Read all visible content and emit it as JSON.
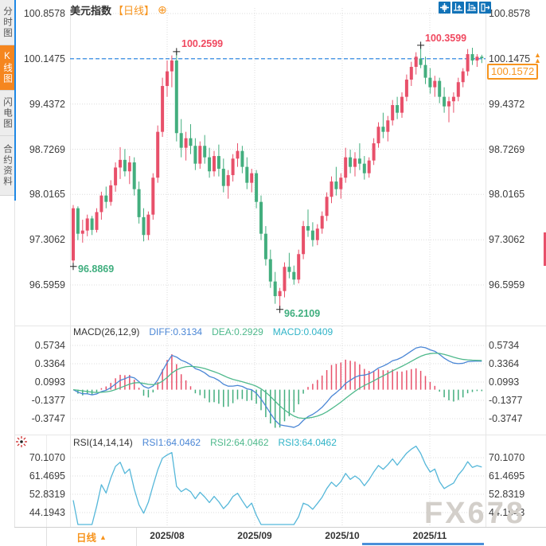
{
  "window": {
    "title_symbol": "美元指数",
    "title_period": "【日线】",
    "title_plus_icon": "⊕"
  },
  "toolbar": {
    "icons": [
      {
        "name": "crosshair"
      },
      {
        "name": "fit-y-axis"
      },
      {
        "name": "fit-x-axis"
      },
      {
        "name": "exit-chart"
      }
    ]
  },
  "sidebar": {
    "tabs": [
      {
        "label": "分时图",
        "active": false
      },
      {
        "label": "K线图",
        "active": true
      },
      {
        "label": "闪电图",
        "active": false
      },
      {
        "label": "合约资料",
        "active": false
      }
    ]
  },
  "price_axis": {
    "labels": [
      "100.8578",
      "100.1475",
      "99.4372",
      "98.7269",
      "98.0165",
      "97.3062",
      "96.5959"
    ],
    "current_price": "100.1572",
    "ref_arrow_icon": "▲"
  },
  "annotations": {
    "high1": "100.2599",
    "high2": "100.3599",
    "low1": "96.8869",
    "low2": "96.2109"
  },
  "macd_panel": {
    "title": "MACD(26,12,9)",
    "diff": "DIFF:0.3134",
    "dea": "DEA:0.2929",
    "macd": "MACD:0.0409",
    "axis_labels": [
      "0.5734",
      "0.3364",
      "0.0993",
      "-0.1377",
      "-0.3747"
    ]
  },
  "rsi_panel": {
    "title": "RSI(14,14,14)",
    "rsi1": "RSI1:64.0462",
    "rsi2": "RSI2:64.0462",
    "rsi3": "RSI3:64.0462",
    "axis_labels": [
      "70.1070",
      "61.4695",
      "52.8319",
      "44.1943"
    ]
  },
  "bottom_bar": {
    "period_label": "日线",
    "period_arrow_icon": "▲",
    "date_labels": [
      "2025/08",
      "2025/09",
      "2025/10",
      "2025/11"
    ]
  },
  "watermark": "FX678",
  "colors": {
    "up": "#e8506a",
    "down": "#43ae7e",
    "diff_line": "#4a86d5",
    "dea_line": "#4fb98c",
    "rsi_line": "#55b7d9",
    "ref_line_blue": "#1a7ce0",
    "accent_orange": "#f7941d",
    "toolbar_blue": "#1273b8",
    "grid": "#dcdcdc"
  },
  "chart_data": [
    {
      "type": "candlestick",
      "symbol": "美元指数",
      "period": "日线",
      "x_ticks": [
        "2025/08",
        "2025/09",
        "2025/10",
        "2025/11"
      ],
      "y_ticks": [
        100.8578,
        100.1475,
        99.4372,
        98.7269,
        98.0165,
        97.3062,
        96.5959
      ],
      "prev_close": 100.1475,
      "last_price": 100.1572,
      "up_color": "#e8506a",
      "down_color": "#43ae7e",
      "high_marks": [
        {
          "index": 22,
          "price": 100.2599
        },
        {
          "index": 74,
          "price": 100.3599
        }
      ],
      "low_marks": [
        {
          "index": 0,
          "price": 96.8869
        },
        {
          "index": 44,
          "price": 96.2109
        }
      ],
      "candles": [
        [
          96.98,
          97.85,
          96.8869,
          97.8
        ],
        [
          97.8,
          97.83,
          97.3,
          97.4
        ],
        [
          97.4,
          97.62,
          97.26,
          97.45
        ],
        [
          97.45,
          97.7,
          97.36,
          97.64
        ],
        [
          97.64,
          97.68,
          97.38,
          97.46
        ],
        [
          97.46,
          97.8,
          97.42,
          97.74
        ],
        [
          97.74,
          98.06,
          97.62,
          98.0
        ],
        [
          98.0,
          98.14,
          97.8,
          97.9
        ],
        [
          97.9,
          98.24,
          97.84,
          98.16
        ],
        [
          98.16,
          98.52,
          98.06,
          98.44
        ],
        [
          98.44,
          98.76,
          98.26,
          98.56
        ],
        [
          98.56,
          98.73,
          98.3,
          98.38
        ],
        [
          98.38,
          98.62,
          98.18,
          98.52
        ],
        [
          98.52,
          98.6,
          98.0,
          98.1
        ],
        [
          98.1,
          98.22,
          97.56,
          97.66
        ],
        [
          97.66,
          97.8,
          97.28,
          97.38
        ],
        [
          97.38,
          97.75,
          97.3,
          97.7
        ],
        [
          97.7,
          98.35,
          97.62,
          98.28
        ],
        [
          98.28,
          99.1,
          98.2,
          99.0
        ],
        [
          99.0,
          99.85,
          98.92,
          99.72
        ],
        [
          99.72,
          100.12,
          99.55,
          99.95
        ],
        [
          99.95,
          100.2,
          99.7,
          100.12
        ],
        [
          100.12,
          100.2599,
          98.85,
          98.98
        ],
        [
          98.98,
          99.2,
          98.6,
          98.75
        ],
        [
          98.75,
          99.0,
          98.55,
          98.9
        ],
        [
          98.9,
          99.12,
          98.65,
          98.78
        ],
        [
          98.78,
          98.9,
          98.4,
          98.5
        ],
        [
          98.5,
          98.85,
          98.42,
          98.78
        ],
        [
          98.78,
          98.95,
          98.5,
          98.6
        ],
        [
          98.6,
          98.75,
          98.28,
          98.38
        ],
        [
          98.38,
          98.7,
          98.3,
          98.62
        ],
        [
          98.62,
          98.8,
          98.3,
          98.42
        ],
        [
          98.42,
          98.58,
          98.05,
          98.15
        ],
        [
          98.15,
          98.4,
          97.95,
          98.32
        ],
        [
          98.32,
          98.65,
          98.22,
          98.58
        ],
        [
          98.58,
          98.82,
          98.45,
          98.7
        ],
        [
          98.7,
          98.78,
          98.35,
          98.45
        ],
        [
          98.45,
          98.6,
          98.1,
          98.2
        ],
        [
          98.2,
          98.42,
          98.05,
          98.35
        ],
        [
          98.35,
          98.4,
          97.8,
          97.9
        ],
        [
          97.9,
          98.0,
          97.3,
          97.4
        ],
        [
          97.4,
          97.52,
          96.9,
          97.0
        ],
        [
          97.0,
          97.15,
          96.55,
          96.65
        ],
        [
          96.65,
          96.8,
          96.3,
          96.42
        ],
        [
          96.42,
          96.55,
          96.2109,
          96.5
        ],
        [
          96.5,
          96.95,
          96.4,
          96.88
        ],
        [
          96.88,
          97.1,
          96.7,
          96.8
        ],
        [
          96.8,
          96.9,
          96.6,
          96.68
        ],
        [
          96.68,
          97.15,
          96.62,
          97.08
        ],
        [
          97.08,
          97.6,
          97.0,
          97.52
        ],
        [
          97.52,
          97.78,
          97.35,
          97.45
        ],
        [
          97.45,
          97.58,
          97.2,
          97.3
        ],
        [
          97.3,
          97.55,
          97.22,
          97.48
        ],
        [
          97.48,
          97.75,
          97.4,
          97.68
        ],
        [
          97.68,
          98.05,
          97.6,
          97.98
        ],
        [
          97.98,
          98.3,
          97.88,
          98.22
        ],
        [
          98.22,
          98.45,
          98.0,
          98.1
        ],
        [
          98.1,
          98.35,
          97.95,
          98.28
        ],
        [
          98.28,
          98.75,
          98.2,
          98.6
        ],
        [
          98.6,
          98.72,
          98.35,
          98.45
        ],
        [
          98.45,
          98.68,
          98.3,
          98.58
        ],
        [
          98.58,
          98.82,
          98.4,
          98.5
        ],
        [
          98.5,
          98.62,
          98.25,
          98.35
        ],
        [
          98.35,
          98.6,
          98.28,
          98.55
        ],
        [
          98.55,
          98.9,
          98.48,
          98.82
        ],
        [
          98.82,
          99.15,
          98.75,
          99.08
        ],
        [
          99.08,
          99.3,
          98.9,
          99.0
        ],
        [
          99.0,
          99.25,
          98.85,
          99.18
        ],
        [
          99.18,
          99.5,
          99.1,
          99.42
        ],
        [
          99.42,
          99.55,
          99.2,
          99.3
        ],
        [
          99.3,
          99.62,
          99.22,
          99.55
        ],
        [
          99.55,
          99.9,
          99.48,
          99.82
        ],
        [
          99.82,
          100.1,
          99.72,
          100.02
        ],
        [
          100.02,
          100.25,
          99.9,
          100.18
        ],
        [
          100.15,
          100.3599,
          100.0,
          100.05
        ],
        [
          100.05,
          100.18,
          99.75,
          99.85
        ],
        [
          99.85,
          100.0,
          99.6,
          99.7
        ],
        [
          99.7,
          99.88,
          99.55,
          99.8
        ],
        [
          99.8,
          99.85,
          99.45,
          99.55
        ],
        [
          99.55,
          99.7,
          99.3,
          99.4
        ],
        [
          99.4,
          99.55,
          99.15,
          99.48
        ],
        [
          99.48,
          99.62,
          99.3,
          99.55
        ],
        [
          99.55,
          99.85,
          99.48,
          99.78
        ],
        [
          99.78,
          100.0,
          99.7,
          99.95
        ],
        [
          99.95,
          100.3,
          99.88,
          100.22
        ],
        [
          100.22,
          100.32,
          100.05,
          100.12
        ],
        [
          100.12,
          100.22,
          100.02,
          100.18
        ],
        [
          100.18,
          100.21,
          100.08,
          100.1572
        ]
      ]
    },
    {
      "type": "line+bar",
      "title": "MACD(26,12,9)",
      "params": [
        26,
        12,
        9
      ],
      "current": {
        "DIFF": 0.3134,
        "DEA": 0.2929,
        "MACD": 0.0409
      },
      "y_ticks": [
        0.5734,
        0.3364,
        0.0993,
        -0.1377,
        -0.3747
      ],
      "series_derived_from": "chart_data[0].candles closes"
    },
    {
      "type": "line",
      "title": "RSI(14,14,14)",
      "params": [
        14,
        14,
        14
      ],
      "current": {
        "RSI1": 64.0462,
        "RSI2": 64.0462,
        "RSI3": 64.0462
      },
      "y_ticks": [
        70.107,
        61.4695,
        52.8319,
        44.1943
      ],
      "series_derived_from": "chart_data[0].candles closes"
    }
  ]
}
